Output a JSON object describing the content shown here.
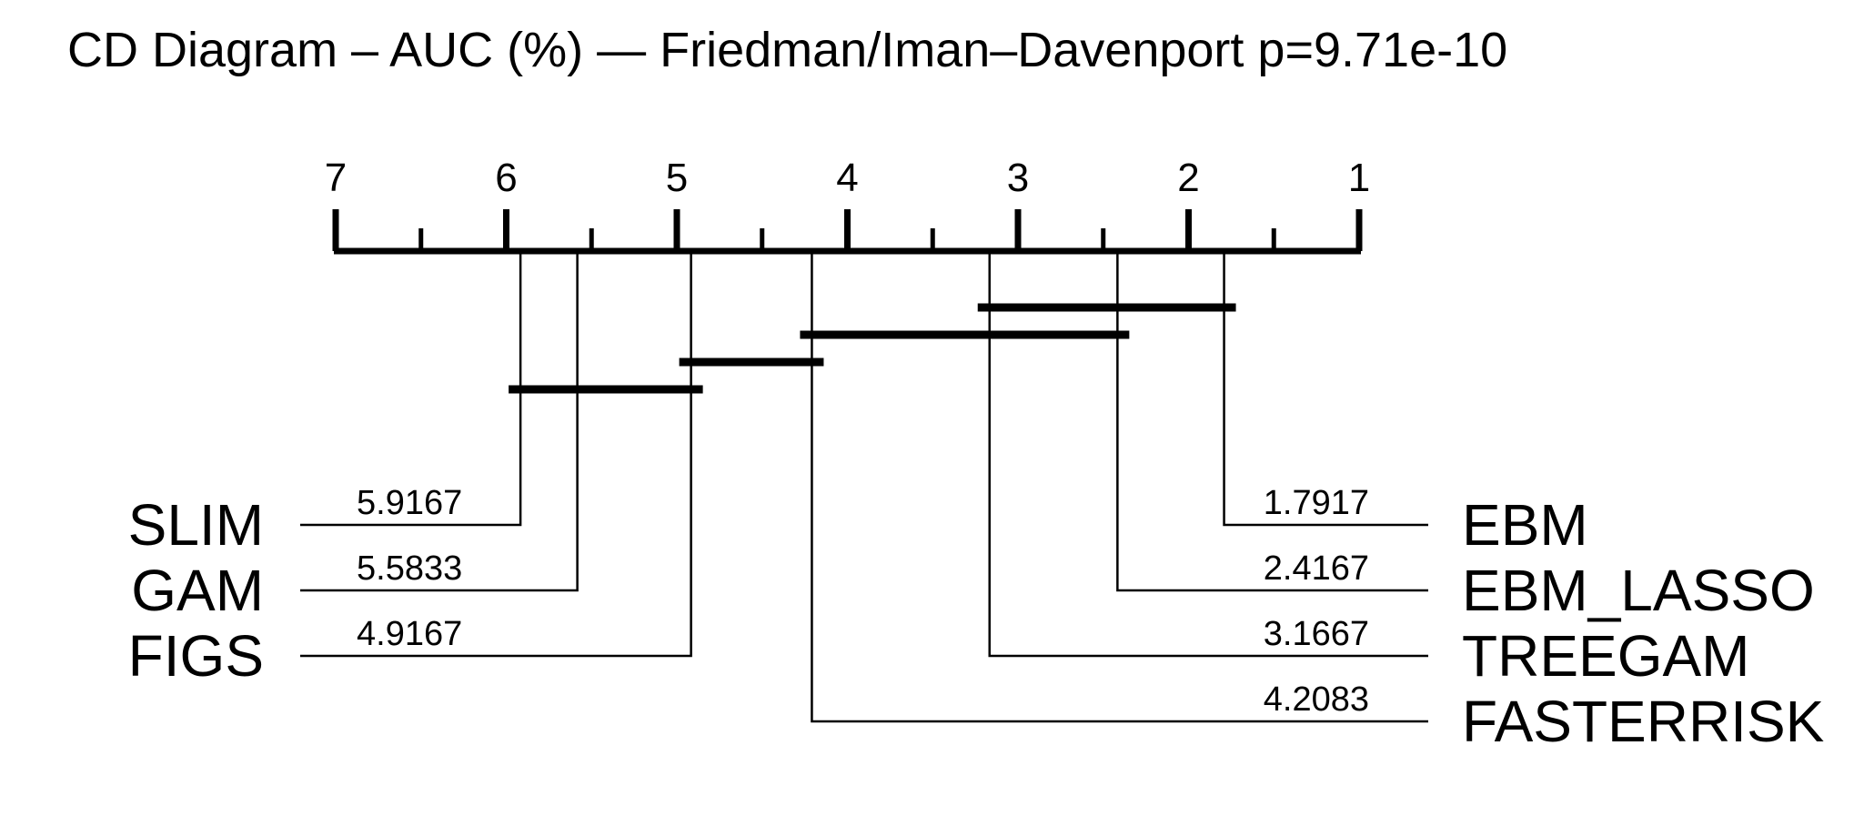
{
  "page": {
    "title": "CD Diagram – AUC (%) — Friedman/Iman–Davenport p=9.71e-10"
  },
  "chart_data": {
    "type": "critical-difference",
    "title": "CD Diagram – AUC (%) — Friedman/Iman–Davenport p=9.71e-10",
    "axis": {
      "range": [
        7,
        1
      ],
      "tick_labels": [
        "7",
        "6",
        "5",
        "4",
        "3",
        "2",
        "1"
      ],
      "minor_ticks": [
        6.5,
        5.5,
        4.5,
        3.5,
        2.5,
        1.5
      ]
    },
    "methods_left": [
      {
        "name": "SLIM",
        "rank": 5.9167,
        "rank_label": "5.9167"
      },
      {
        "name": "GAM",
        "rank": 5.5833,
        "rank_label": "5.5833"
      },
      {
        "name": "FIGS",
        "rank": 4.9167,
        "rank_label": "4.9167"
      }
    ],
    "methods_right": [
      {
        "name": "EBM",
        "rank": 1.7917,
        "rank_label": "1.7917"
      },
      {
        "name": "EBM_LASSO",
        "rank": 2.4167,
        "rank_label": "2.4167"
      },
      {
        "name": "TREEGAM",
        "rank": 3.1667,
        "rank_label": "3.1667"
      },
      {
        "name": "FASTERRISK",
        "rank": 4.2083,
        "rank_label": "4.2083"
      }
    ],
    "cliques": [
      {
        "from": 3.1667,
        "to": 1.7917
      },
      {
        "from": 4.2083,
        "to": 2.4167
      },
      {
        "from": 4.9167,
        "to": 4.2083
      },
      {
        "from": 5.9167,
        "to": 4.9167
      }
    ]
  }
}
